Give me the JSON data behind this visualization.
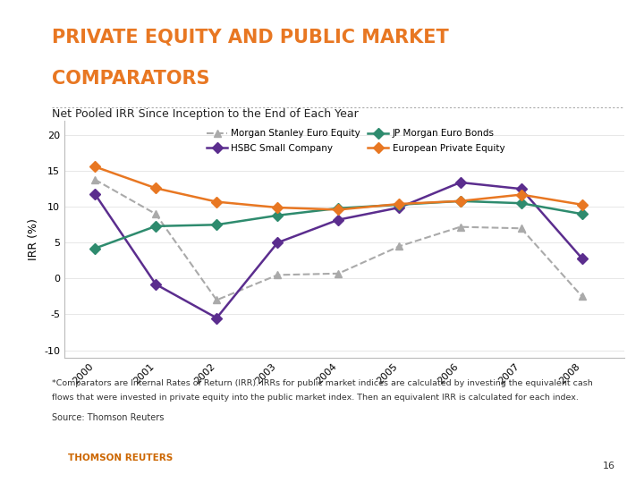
{
  "title_line1": "PRIVATE EQUITY AND PUBLIC MARKET",
  "title_line2": "COMPARATORS",
  "subtitle": "Net Pooled IRR Since Inception to the End of Each Year",
  "ylabel": "IRR (%)",
  "title_color": "#E87722",
  "subtitle_color": "#222222",
  "bg_color": "#FFFFFF",
  "years": [
    2000,
    2001,
    2002,
    2003,
    2004,
    2005,
    2006,
    2007,
    2008
  ],
  "series": [
    {
      "name": "Morgan Stanley Euro Equity",
      "values": [
        13.8,
        9.0,
        -3.0,
        0.5,
        0.7,
        4.5,
        7.2,
        7.0,
        -2.5
      ],
      "color": "#AAAAAA",
      "marker": "^",
      "linestyle": "--",
      "linewidth": 1.5,
      "markersize": 6
    },
    {
      "name": "HSBC Small Company",
      "values": [
        11.8,
        -0.8,
        -5.5,
        5.0,
        8.2,
        9.9,
        13.4,
        12.5,
        2.8
      ],
      "color": "#5B2D8E",
      "marker": "D",
      "linestyle": "-",
      "linewidth": 1.8,
      "markersize": 6
    },
    {
      "name": "JP Morgan Euro Bonds",
      "values": [
        4.2,
        7.3,
        7.5,
        8.8,
        9.8,
        10.3,
        10.8,
        10.5,
        9.0
      ],
      "color": "#2E8B6E",
      "marker": "D",
      "linestyle": "-",
      "linewidth": 1.8,
      "markersize": 6
    },
    {
      "name": "European Private Equity",
      "values": [
        15.6,
        12.6,
        10.7,
        9.9,
        9.6,
        10.4,
        10.8,
        11.7,
        10.3
      ],
      "color": "#E87722",
      "marker": "D",
      "linestyle": "-",
      "linewidth": 1.8,
      "markersize": 6
    }
  ],
  "ylim": [
    -11,
    22
  ],
  "yticks": [
    -10,
    -5,
    0,
    5,
    10,
    15,
    20
  ],
  "footnote_line1": "*Comparators are Internal Rates of Return (IRR). IRRs for public market indices are calculated by investing the equivalent cash",
  "footnote_line2": "flows that were invested in private equity into the public market index. Then an equivalent IRR is calculated for each index.",
  "source_text": "Source: Thomson Reuters",
  "thomson_reuters": "THOMSON REUTERS",
  "page_number": "16",
  "title_fontsize": 15,
  "subtitle_fontsize": 9,
  "axis_fontsize": 8,
  "footnote_fontsize": 6.8,
  "legend_fontsize": 7.5
}
